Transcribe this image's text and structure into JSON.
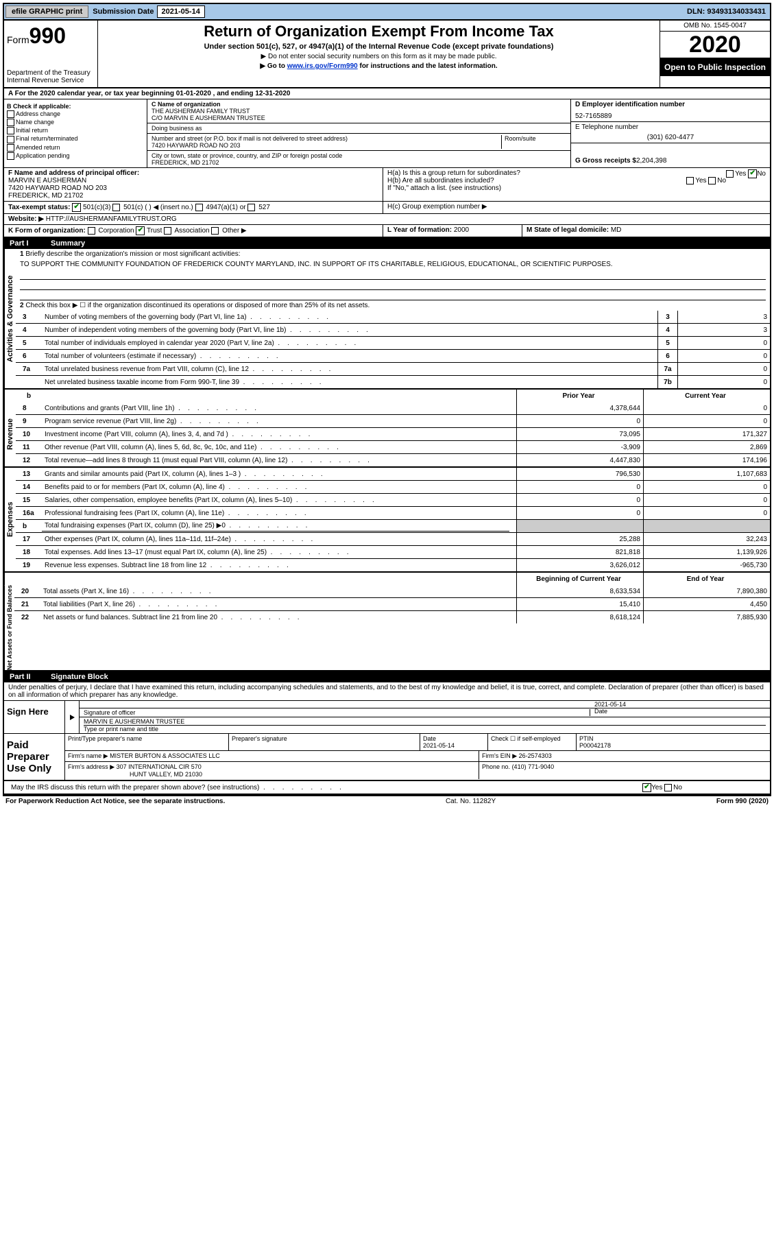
{
  "topbar": {
    "efile": "efile GRAPHIC print",
    "subLabel": "Submission Date",
    "subDate": "2021-05-14",
    "dln": "DLN: 93493134033431"
  },
  "header": {
    "form": "Form",
    "formNum": "990",
    "dept": "Department of the Treasury",
    "irs": "Internal Revenue Service",
    "title": "Return of Organization Exempt From Income Tax",
    "sub1": "Under section 501(c), 527, or 4947(a)(1) of the Internal Revenue Code (except private foundations)",
    "sub2": "▶ Do not enter social security numbers on this form as it may be made public.",
    "sub3a": "▶ Go to ",
    "sub3link": "www.irs.gov/Form990",
    "sub3b": " for instructions and the latest information.",
    "omb": "OMB No. 1545-0047",
    "year": "2020",
    "open": "Open to Public Inspection"
  },
  "periodA": "A For the 2020 calendar year, or tax year beginning 01-01-2020    , and ending 12-31-2020",
  "boxB": {
    "title": "B Check if applicable:",
    "opts": [
      "Address change",
      "Name change",
      "Initial return",
      "Final return/terminated",
      "Amended return",
      "Application pending"
    ]
  },
  "boxC": {
    "label": "C Name of organization",
    "name": "THE AUSHERMAN FAMILY TRUST",
    "co": "C/O MARVIN E AUSHERMAN TRUSTEE",
    "dba": "Doing business as",
    "addrLabel": "Number and street (or P.O. box if mail is not delivered to street address)",
    "addr": "7420 HAYWARD ROAD NO 203",
    "room": "Room/suite",
    "cityLabel": "City or town, state or province, country, and ZIP or foreign postal code",
    "city": "FREDERICK, MD  21702"
  },
  "boxD": {
    "label": "D Employer identification number",
    "val": "52-7165889"
  },
  "boxE": {
    "label": "E Telephone number",
    "val": "(301) 620-4477"
  },
  "boxG": {
    "label": "G Gross receipts $",
    "val": "2,204,398"
  },
  "boxF": {
    "label": "F  Name and address of principal officer:",
    "name": "MARVIN E AUSHERMAN",
    "addr1": "7420 HAYWARD ROAD NO 203",
    "addr2": "FREDERICK, MD  21702"
  },
  "boxH": {
    "ha": "H(a)  Is this a group return for subordinates?",
    "hb": "H(b)  Are all subordinates included?",
    "hbNote": "If \"No,\" attach a list. (see instructions)",
    "hc": "H(c)  Group exemption number ▶"
  },
  "taxExempt": {
    "label": "Tax-exempt status:",
    "opts": [
      "501(c)(3)",
      "501(c) (  ) ◀ (insert no.)",
      "4947(a)(1) or",
      "527"
    ]
  },
  "website": {
    "label": "Website: ▶",
    "val": "HTTP://AUSHERMANFAMILYTRUST.ORG"
  },
  "boxK": {
    "label": "K Form of organization:",
    "opts": [
      "Corporation",
      "Trust",
      "Association",
      "Other ▶"
    ]
  },
  "boxL": {
    "label": "L Year of formation:",
    "val": "2000"
  },
  "boxM": {
    "label": "M State of legal domicile:",
    "val": "MD"
  },
  "part1": {
    "num": "Part I",
    "title": "Summary"
  },
  "summary": {
    "q1": "Briefly describe the organization's mission or most significant activities:",
    "mission": "TO SUPPORT THE COMMUNITY FOUNDATION OF FREDERICK COUNTY MARYLAND, INC. IN SUPPORT OF ITS CHARITABLE, RELIGIOUS, EDUCATIONAL, OR SCIENTIFIC PURPOSES.",
    "q2": "Check this box ▶ ☐ if the organization discontinued its operations or disposed of more than 25% of its net assets.",
    "lines": [
      {
        "n": "3",
        "d": "Number of voting members of the governing body (Part VI, line 1a)",
        "bn": "3",
        "v": "3"
      },
      {
        "n": "4",
        "d": "Number of independent voting members of the governing body (Part VI, line 1b)",
        "bn": "4",
        "v": "3"
      },
      {
        "n": "5",
        "d": "Total number of individuals employed in calendar year 2020 (Part V, line 2a)",
        "bn": "5",
        "v": "0"
      },
      {
        "n": "6",
        "d": "Total number of volunteers (estimate if necessary)",
        "bn": "6",
        "v": "0"
      },
      {
        "n": "7a",
        "d": "Total unrelated business revenue from Part VIII, column (C), line 12",
        "bn": "7a",
        "v": "0"
      },
      {
        "n": "",
        "d": "Net unrelated business taxable income from Form 990-T, line 39",
        "bn": "7b",
        "v": "0"
      }
    ]
  },
  "colHeaders": {
    "prior": "Prior Year",
    "current": "Current Year"
  },
  "revenue": {
    "label": "Revenue",
    "lines": [
      {
        "n": "8",
        "d": "Contributions and grants (Part VIII, line 1h)",
        "p": "4,378,644",
        "c": "0"
      },
      {
        "n": "9",
        "d": "Program service revenue (Part VIII, line 2g)",
        "p": "0",
        "c": "0"
      },
      {
        "n": "10",
        "d": "Investment income (Part VIII, column (A), lines 3, 4, and 7d )",
        "p": "73,095",
        "c": "171,327"
      },
      {
        "n": "11",
        "d": "Other revenue (Part VIII, column (A), lines 5, 6d, 8c, 9c, 10c, and 11e)",
        "p": "-3,909",
        "c": "2,869"
      },
      {
        "n": "12",
        "d": "Total revenue—add lines 8 through 11 (must equal Part VIII, column (A), line 12)",
        "p": "4,447,830",
        "c": "174,196"
      }
    ]
  },
  "expenses": {
    "label": "Expenses",
    "lines": [
      {
        "n": "13",
        "d": "Grants and similar amounts paid (Part IX, column (A), lines 1–3 )",
        "p": "796,530",
        "c": "1,107,683"
      },
      {
        "n": "14",
        "d": "Benefits paid to or for members (Part IX, column (A), line 4)",
        "p": "0",
        "c": "0"
      },
      {
        "n": "15",
        "d": "Salaries, other compensation, employee benefits (Part IX, column (A), lines 5–10)",
        "p": "0",
        "c": "0"
      },
      {
        "n": "16a",
        "d": "Professional fundraising fees (Part IX, column (A), line 11e)",
        "p": "0",
        "c": "0"
      },
      {
        "n": "b",
        "d": "Total fundraising expenses (Part IX, column (D), line 25) ▶0",
        "p": "",
        "c": "",
        "shade": true
      },
      {
        "n": "17",
        "d": "Other expenses (Part IX, column (A), lines 11a–11d, 11f–24e)",
        "p": "25,288",
        "c": "32,243"
      },
      {
        "n": "18",
        "d": "Total expenses. Add lines 13–17 (must equal Part IX, column (A), line 25)",
        "p": "821,818",
        "c": "1,139,926"
      },
      {
        "n": "19",
        "d": "Revenue less expenses. Subtract line 18 from line 12",
        "p": "3,626,012",
        "c": "-965,730"
      }
    ]
  },
  "netassets": {
    "label": "Net Assets or Fund Balances",
    "h1": "Beginning of Current Year",
    "h2": "End of Year",
    "lines": [
      {
        "n": "20",
        "d": "Total assets (Part X, line 16)",
        "p": "8,633,534",
        "c": "7,890,380"
      },
      {
        "n": "21",
        "d": "Total liabilities (Part X, line 26)",
        "p": "15,410",
        "c": "4,450"
      },
      {
        "n": "22",
        "d": "Net assets or fund balances. Subtract line 21 from line 20",
        "p": "8,618,124",
        "c": "7,885,930"
      }
    ]
  },
  "part2": {
    "num": "Part II",
    "title": "Signature Block"
  },
  "declare": "Under penalties of perjury, I declare that I have examined this return, including accompanying schedules and statements, and to the best of my knowledge and belief, it is true, correct, and complete. Declaration of preparer (other than officer) is based on all information of which preparer has any knowledge.",
  "sign": {
    "label": "Sign Here",
    "sigOf": "Signature of officer",
    "date": "2021-05-14",
    "dateL": "Date",
    "name": "MARVIN E AUSHERMAN  TRUSTEE",
    "typeL": "Type or print name and title"
  },
  "paid": {
    "label": "Paid Preparer Use Only",
    "h1": "Print/Type preparer's name",
    "h2": "Preparer's signature",
    "h3": "Date",
    "date": "2021-05-14",
    "h4": "Check ☐ if self-employed",
    "h5": "PTIN",
    "ptin": "P00042178",
    "firmL": "Firm's name    ▶",
    "firm": "MISTER BURTON & ASSOCIATES LLC",
    "einL": "Firm's EIN ▶",
    "ein": "26-2574303",
    "addrL": "Firm's address ▶",
    "addr1": "307 INTERNATIONAL CIR 570",
    "addr2": "HUNT VALLEY, MD  21030",
    "phoneL": "Phone no.",
    "phone": "(410) 771-9040"
  },
  "discuss": "May the IRS discuss this return with the preparer shown above? (see instructions)",
  "footer": {
    "left": "For Paperwork Reduction Act Notice, see the separate instructions.",
    "mid": "Cat. No. 11282Y",
    "right": "Form 990 (2020)"
  },
  "yes": "Yes",
  "no": "No"
}
